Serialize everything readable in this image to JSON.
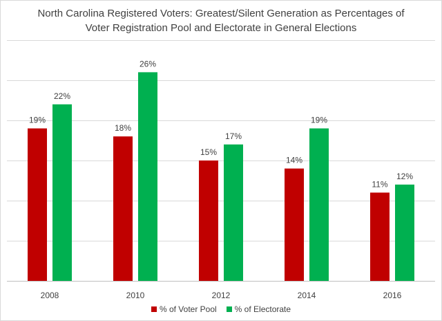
{
  "chart_data": {
    "type": "bar",
    "title_line1": "North Carolina Registered Voters: Greatest/Silent Generation as Percentages of",
    "title_line2": "Voter Registration Pool and Electorate in General Elections",
    "xlabel": "",
    "ylabel": "",
    "ylim": [
      0,
      30
    ],
    "y_gridlines": [
      0,
      5,
      10,
      15,
      20,
      25,
      30
    ],
    "y_tick_labels_visible": false,
    "grid": true,
    "legend_position": "bottom",
    "categories": [
      "2008",
      "2010",
      "2012",
      "2014",
      "2016"
    ],
    "series": [
      {
        "name": "% of Voter Pool",
        "color": "#C00000",
        "values": [
          19,
          18,
          15,
          14,
          11
        ],
        "labels": [
          "19%",
          "18%",
          "15%",
          "14%",
          "11%"
        ]
      },
      {
        "name": "% of Electorate",
        "color": "#00B050",
        "values": [
          22,
          26,
          17,
          19,
          12
        ],
        "labels": [
          "22%",
          "26%",
          "17%",
          "19%",
          "12%"
        ]
      }
    ]
  }
}
